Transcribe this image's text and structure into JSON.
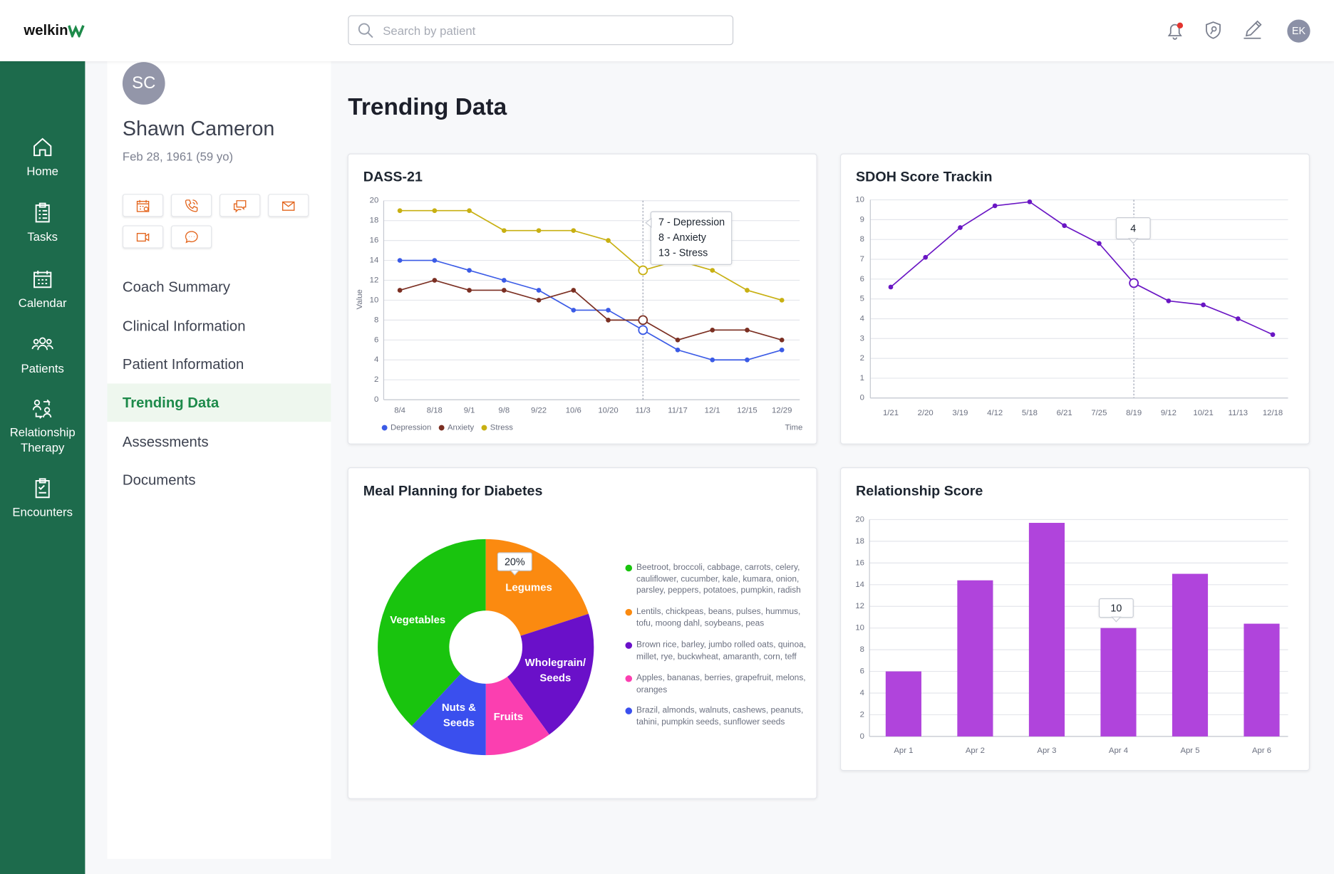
{
  "header": {
    "logo": "welkin",
    "search_placeholder": "Search by patient",
    "user_initials": "EK"
  },
  "nav": [
    "Home",
    "Tasks",
    "Calendar",
    "Patients",
    "Relationship Therapy",
    "Encounters"
  ],
  "patient": {
    "initials": "SC",
    "name": "Shawn Cameron",
    "dob": "Feb 28, 1961 (59 yo)",
    "menu": [
      {
        "label": "Coach Summary"
      },
      {
        "label": "Clinical Information"
      },
      {
        "label": "Patient Information"
      },
      {
        "label": "Trending Data",
        "active": true
      },
      {
        "label": "Assessments"
      },
      {
        "label": "Documents"
      }
    ]
  },
  "page_title": "Trending Data",
  "chart_data": [
    {
      "type": "line",
      "title": "DASS-21",
      "x_label": "Time",
      "y_label": "Value",
      "categories": [
        "8/4",
        "8/18",
        "9/1",
        "9/8",
        "9/22",
        "10/6",
        "10/20",
        "11/3",
        "11/17",
        "12/1",
        "12/15",
        "12/29"
      ],
      "series": [
        {
          "name": "Depression",
          "color": "#3b5be6",
          "values": [
            14,
            14,
            13,
            12,
            11,
            9,
            9,
            7,
            5,
            4,
            4,
            5
          ]
        },
        {
          "name": "Anxiety",
          "color": "#7b2f22",
          "values": [
            11,
            12,
            11,
            11,
            10,
            11,
            8,
            8,
            6,
            7,
            7,
            6
          ]
        },
        {
          "name": "Stress",
          "color": "#c8b012",
          "values": [
            19,
            19,
            19,
            17,
            17,
            17,
            16,
            13,
            14,
            13,
            11,
            10
          ]
        }
      ],
      "ylim": [
        0,
        20
      ],
      "yticks": [
        0,
        2,
        4,
        6,
        8,
        10,
        12,
        14,
        16,
        18,
        20
      ],
      "grid": true,
      "tooltip": [
        "7 - Depression",
        "8 - Anxiety",
        "13 - Stress"
      ]
    },
    {
      "type": "line",
      "title": "SDOH Score Trackin",
      "categories": [
        "1/21",
        "2/20",
        "3/19",
        "4/12",
        "5/18",
        "6/21",
        "7/25",
        "8/19",
        "9/12",
        "10/21",
        "11/13",
        "12/18"
      ],
      "values": [
        5.6,
        7.1,
        8.6,
        9.7,
        9.9,
        8.7,
        7.8,
        5.8,
        4.9,
        4.7,
        4.0,
        3.2
      ],
      "color": "#6a16c4",
      "ylim": [
        0,
        10
      ],
      "yticks": [
        0,
        1,
        2,
        3,
        4,
        5,
        6,
        7,
        8,
        9,
        10
      ],
      "grid": true,
      "tooltip": "4"
    },
    {
      "type": "pie",
      "title": "Meal Planning for Diabetes",
      "categories": [
        "Vegetables",
        "Legumes",
        "Wholegrain/ Seeds",
        "Fruits",
        "Nuts & Seeds"
      ],
      "values": [
        38,
        20,
        20,
        10,
        12
      ],
      "colors": [
        "#19c40e",
        "#fb8a10",
        "#6a10c9",
        "#fb3fb0",
        "#3a4fee"
      ],
      "descriptions": [
        "Beetroot, broccoli, cabbage, carrots, celery, cauliflower, cucumber, kale, kumara, onion, parsley, peppers, potatoes, pumpkin, radish",
        "Lentils, chickpeas, beans, pulses, hummus, tofu, moong dahl, soybeans, peas",
        "Brown rice, barley, jumbo rolled oats, quinoa, millet, rye, buckwheat, amaranth, corn, teff",
        "Apples, bananas, berries, grapefruit, melons, oranges",
        "Brazil, almonds, walnuts, cashews, peanuts, tahini, pumpkin seeds, sunflower seeds"
      ],
      "tooltip": "20%"
    },
    {
      "type": "bar",
      "title": "Relationship Score",
      "categories": [
        "Apr 1",
        "Apr 2",
        "Apr 3",
        "Apr 4",
        "Apr 5",
        "Apr 6"
      ],
      "values": [
        6,
        14.4,
        19.7,
        10,
        15,
        10.4
      ],
      "color": "#b044dc",
      "ylim": [
        0,
        20
      ],
      "yticks": [
        0,
        2,
        4,
        6,
        8,
        10,
        12,
        14,
        16,
        18,
        20
      ],
      "grid": true,
      "tooltip": "10"
    }
  ]
}
